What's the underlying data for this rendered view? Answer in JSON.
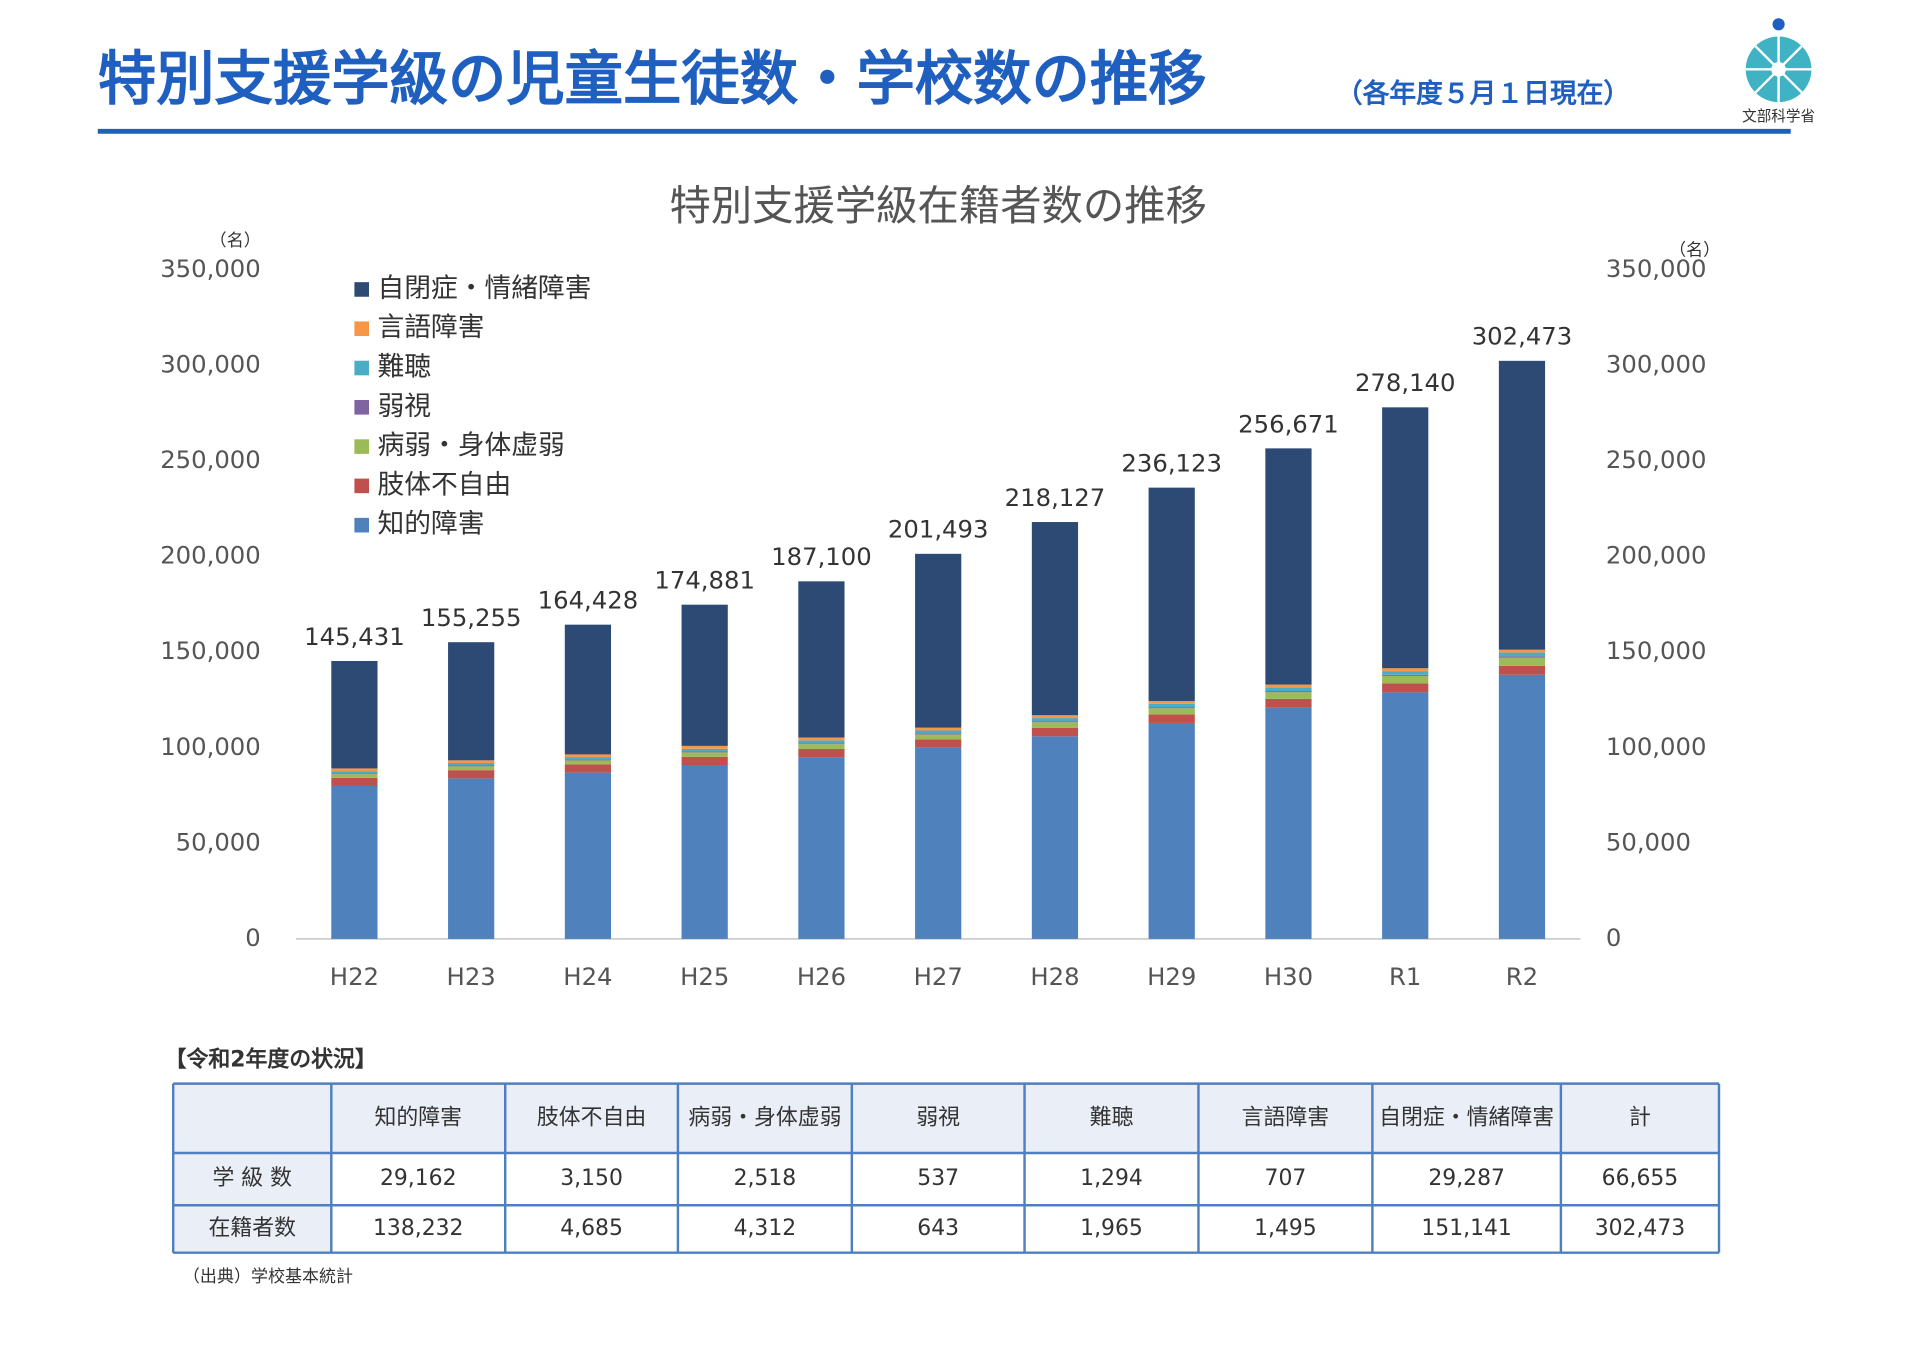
{
  "header": {
    "title": "特別支援学級の児童生徒数・学校数の推移",
    "subtitle": "（各年度５月１日現在）",
    "logo": "文部科学省"
  },
  "chart_data": {
    "type": "stacked_bar",
    "title": "特別支援学級在籍者数の推移",
    "y_unit": "（名）",
    "y2_unit": "（名）",
    "categories": [
      "H22",
      "H23",
      "H24",
      "H25",
      "H26",
      "H27",
      "H28",
      "H29",
      "H30",
      "R1",
      "R2"
    ],
    "series": [
      {
        "name": "知的障害",
        "color": "#4f81bd",
        "values": [
          80000,
          84000,
          87000,
          91000,
          95000,
          100000,
          106000,
          113000,
          121000,
          129000,
          138232
        ]
      },
      {
        "name": "肢体不自由",
        "color": "#c0504d",
        "values": [
          4300,
          4300,
          4300,
          4300,
          4400,
          4400,
          4500,
          4500,
          4600,
          4700,
          4685
        ]
      },
      {
        "name": "病弱・身体虚弱",
        "color": "#9bbb59",
        "values": [
          1900,
          2000,
          2100,
          2300,
          2500,
          2600,
          2900,
          3200,
          3500,
          3900,
          4312
        ]
      },
      {
        "name": "弱視",
        "color": "#8064a2",
        "values": [
          400,
          450,
          450,
          500,
          500,
          550,
          550,
          600,
          600,
          620,
          643
        ]
      },
      {
        "name": "難聴",
        "color": "#4bacc6",
        "values": [
          1200,
          1300,
          1300,
          1400,
          1500,
          1500,
          1600,
          1700,
          1800,
          1900,
          1965
        ]
      },
      {
        "name": "言語障害",
        "color": "#f79646",
        "values": [
          1400,
          1400,
          1400,
          1500,
          1500,
          1500,
          1500,
          1500,
          1600,
          1500,
          1495
        ]
      },
      {
        "name": "自閉症・情緒障害",
        "color": "#2c4a74",
        "values": [
          56231,
          61805,
          67878,
          73881,
          81700,
          90943,
          101077,
          111623,
          123571,
          136520,
          151141
        ]
      }
    ],
    "total_labels": [
      "145,431",
      "155,255",
      "164,428",
      "174,881",
      "187,100",
      "201,493",
      "218,127",
      "236,123",
      "256,671",
      "278,140",
      "302,473"
    ],
    "ylim": [
      0,
      350000
    ],
    "yticks": [
      0,
      {
        "value": 50000,
        "label": "50,000"
      },
      {
        "value": 100000,
        "label": "100,000"
      },
      {
        "value": 150000,
        "label": "150,000"
      },
      {
        "value": 200000,
        "label": "200,000"
      },
      {
        "value": 250000,
        "label": "250,000"
      },
      {
        "value": 300000,
        "label": "300,000"
      },
      {
        "value": 350000,
        "label": "350,000"
      }
    ],
    "y2lim": [
      0,
      350000
    ],
    "y2ticks": [
      0,
      {
        "value": 50000,
        "label": "50,000"
      },
      {
        "value": 100000,
        "label": "100,000"
      },
      {
        "value": 150000,
        "label": "150,000"
      },
      {
        "value": 200000,
        "label": "200,000"
      },
      {
        "value": 250000,
        "label": "250,000"
      },
      {
        "value": 300000,
        "label": "300,000"
      },
      {
        "value": 350000,
        "label": "350,000"
      }
    ],
    "grid": false,
    "legend": "upper left"
  },
  "table": {
    "title": "【令和2年度の状況】",
    "columns": [
      "知的障害",
      "肢体不自由",
      "病弱・身体虚弱",
      "弱視",
      "難聴",
      "言語障害",
      "自閉症・情緒障害",
      "計"
    ],
    "rows": [
      {
        "label": "学 級 数",
        "cells": [
          "29,162",
          "3,150",
          "2,518",
          "537",
          "1,294",
          "707",
          "29,287",
          "66,655"
        ]
      },
      {
        "label": "在籍者数",
        "cells": [
          "138,232",
          "4,685",
          "4,312",
          "643",
          "1,965",
          "1,495",
          "151,141",
          "302,473"
        ]
      }
    ]
  },
  "source": "（出典）学校基本統計"
}
